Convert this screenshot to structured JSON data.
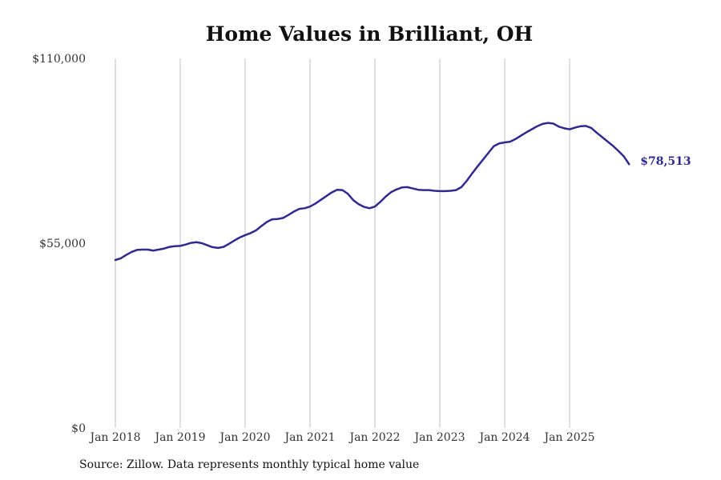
{
  "chart_data": {
    "type": "line",
    "title": "Home Values in Brilliant, OH",
    "source": "Source: Zillow. Data represents monthly typical home value",
    "xlabel": "",
    "ylabel": "",
    "ylim": [
      0,
      110000
    ],
    "y_ticks": [
      {
        "value": 0,
        "label": "$0"
      },
      {
        "value": 55000,
        "label": "$55,000"
      },
      {
        "value": 110000,
        "label": "$110,000"
      }
    ],
    "x_ticks": [
      {
        "value": 2018,
        "label": "Jan 2018"
      },
      {
        "value": 2019,
        "label": "Jan 2019"
      },
      {
        "value": 2020,
        "label": "Jan 2020"
      },
      {
        "value": 2021,
        "label": "Jan 2021"
      },
      {
        "value": 2022,
        "label": "Jan 2022"
      },
      {
        "value": 2023,
        "label": "Jan 2023"
      },
      {
        "value": 2024,
        "label": "Jan 2024"
      },
      {
        "value": 2025,
        "label": "Jan 2025"
      }
    ],
    "grid": "vertical",
    "color": "#2e2a8f",
    "end_label": "$78,513",
    "series": [
      {
        "name": "Typical home value",
        "x_start": 2018,
        "step": 0.08333333,
        "values": [
          50000,
          50500,
          51500,
          52400,
          53000,
          53100,
          53100,
          52800,
          53100,
          53400,
          53900,
          54100,
          54200,
          54600,
          55100,
          55300,
          55000,
          54400,
          53800,
          53600,
          53900,
          54800,
          55800,
          56700,
          57400,
          58000,
          58800,
          60100,
          61300,
          62100,
          62200,
          62500,
          63400,
          64400,
          65200,
          65400,
          65900,
          66800,
          67900,
          69000,
          70100,
          70900,
          70800,
          69700,
          67800,
          66600,
          65800,
          65400,
          65900,
          67300,
          68900,
          70200,
          71000,
          71600,
          71700,
          71300,
          70900,
          70800,
          70800,
          70600,
          70500,
          70500,
          70600,
          70800,
          71700,
          73600,
          75800,
          77900,
          79900,
          81900,
          83900,
          84700,
          85000,
          85200,
          86000,
          87000,
          88000,
          88900,
          89800,
          90500,
          90800,
          90600,
          89700,
          89200,
          88900,
          89400,
          89800,
          89900,
          89300,
          87900,
          86600,
          85300,
          84000,
          82500,
          80900,
          78513
        ]
      }
    ]
  }
}
